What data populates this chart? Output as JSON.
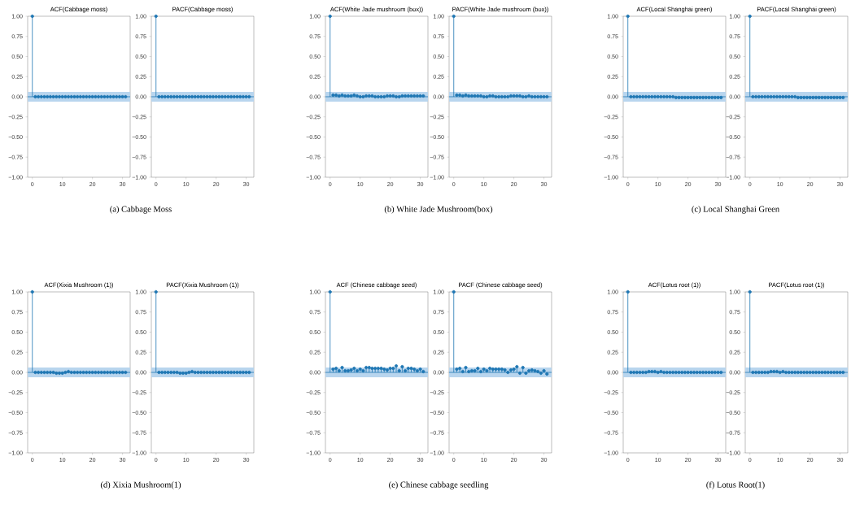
{
  "chart_data": [
    {
      "type": "lollipop",
      "title": "ACF(Cabbage moss)",
      "color": "#1f77b4",
      "marker": "circle",
      "x": [
        0,
        1,
        2,
        3,
        4,
        5,
        6,
        7,
        8,
        9,
        10,
        11,
        12,
        13,
        14,
        15,
        16,
        17,
        18,
        19,
        20,
        21,
        22,
        23,
        24,
        25,
        26,
        27,
        28,
        29,
        30,
        31
      ],
      "values": [
        1,
        0,
        0,
        0,
        0,
        0,
        0,
        0,
        0,
        0,
        0,
        0,
        0,
        0,
        0,
        0,
        0,
        0,
        0,
        0,
        0,
        0,
        0,
        0,
        0,
        0,
        0,
        0,
        0,
        0,
        0,
        0
      ],
      "xlim": [
        -1.55,
        32.55
      ],
      "ylim": [
        -1,
        1
      ],
      "xticks": [
        0,
        10,
        20,
        30
      ],
      "yticks": [
        {
          "value": -1,
          "label": "−1.00"
        },
        {
          "value": -0.75,
          "label": "−0.75"
        },
        {
          "value": -0.5,
          "label": "−0.50"
        },
        {
          "value": -0.25,
          "label": "−0.25"
        },
        {
          "value": 0,
          "label": "0.00"
        },
        {
          "value": 0.25,
          "label": "0.25"
        },
        {
          "value": 0.5,
          "label": "0.50"
        },
        {
          "value": 0.75,
          "label": "0.75"
        },
        {
          "value": 1,
          "label": "1.00"
        }
      ],
      "bands": [
        {
          "axis": "y",
          "from": -0.06,
          "to": 0.06,
          "color": "#b8d5ee"
        }
      ],
      "ref_lines": [
        {
          "axis": "y",
          "value": 0,
          "color": "#1f77b4"
        }
      ],
      "annotations": [
        "(a)  Cabbage Moss"
      ]
    },
    {
      "type": "lollipop",
      "title": "PACF(Cabbage moss)",
      "color": "#1f77b4",
      "marker": "circle",
      "x": [
        0,
        1,
        2,
        3,
        4,
        5,
        6,
        7,
        8,
        9,
        10,
        11,
        12,
        13,
        14,
        15,
        16,
        17,
        18,
        19,
        20,
        21,
        22,
        23,
        24,
        25,
        26,
        27,
        28,
        29,
        30,
        31
      ],
      "values": [
        1,
        0,
        0,
        0,
        0,
        0,
        0,
        0,
        0,
        0,
        0,
        0,
        0,
        0,
        0,
        0,
        0,
        0,
        0,
        0,
        0,
        0,
        0,
        0,
        0,
        0,
        0,
        0,
        0,
        0,
        0,
        0
      ],
      "xlim": [
        -1.55,
        32.55
      ],
      "ylim": [
        -1,
        1
      ],
      "xticks": [
        0,
        10,
        20,
        30
      ],
      "yticks": [
        {
          "value": -1,
          "label": "−1.00"
        },
        {
          "value": -0.75,
          "label": "−0.75"
        },
        {
          "value": -0.5,
          "label": "−0.50"
        },
        {
          "value": -0.25,
          "label": "−0.25"
        },
        {
          "value": 0,
          "label": "0.00"
        },
        {
          "value": 0.25,
          "label": "0.25"
        },
        {
          "value": 0.5,
          "label": "0.50"
        },
        {
          "value": 0.75,
          "label": "0.75"
        },
        {
          "value": 1,
          "label": "1.00"
        }
      ],
      "bands": [
        {
          "axis": "y",
          "from": -0.06,
          "to": 0.06,
          "color": "#b8d5ee"
        }
      ],
      "ref_lines": [
        {
          "axis": "y",
          "value": 0,
          "color": "#1f77b4"
        }
      ]
    },
    {
      "type": "lollipop",
      "title": "ACF(White Jade mushroom (box))",
      "color": "#1f77b4",
      "marker": "circle",
      "x": [
        0,
        1,
        2,
        3,
        4,
        5,
        6,
        7,
        8,
        9,
        10,
        11,
        12,
        13,
        14,
        15,
        16,
        17,
        18,
        19,
        20,
        21,
        22,
        23,
        24,
        25,
        26,
        27,
        28,
        29,
        30,
        31
      ],
      "values": [
        1,
        0.02,
        0.02,
        0.01,
        0.02,
        0.01,
        0.01,
        0.01,
        0.02,
        0.01,
        0,
        0,
        0.01,
        0.01,
        0.01,
        0,
        0,
        0,
        0,
        0.01,
        0.01,
        0.01,
        0,
        0,
        0.01,
        0.01,
        0.01,
        0.01,
        0.01,
        0.01,
        0.01,
        0.01
      ],
      "xlim": [
        -1.55,
        32.55
      ],
      "ylim": [
        -1,
        1
      ],
      "xticks": [
        0,
        10,
        20,
        30
      ],
      "yticks": [
        {
          "value": -1,
          "label": "−1.00"
        },
        {
          "value": -0.75,
          "label": "−0.75"
        },
        {
          "value": -0.5,
          "label": "−0.50"
        },
        {
          "value": -0.25,
          "label": "−0.25"
        },
        {
          "value": 0,
          "label": "0.00"
        },
        {
          "value": 0.25,
          "label": "0.25"
        },
        {
          "value": 0.5,
          "label": "0.50"
        },
        {
          "value": 0.75,
          "label": "0.75"
        },
        {
          "value": 1,
          "label": "1.00"
        }
      ],
      "bands": [
        {
          "axis": "y",
          "from": -0.06,
          "to": 0.06,
          "color": "#b8d5ee"
        }
      ],
      "ref_lines": [
        {
          "axis": "y",
          "value": 0,
          "color": "#1f77b4"
        }
      ],
      "annotations": [
        "(b)  White Jade Mushroom(box)"
      ]
    },
    {
      "type": "lollipop",
      "title": "PACF(White Jade mushroom (box))",
      "color": "#1f77b4",
      "marker": "circle",
      "x": [
        0,
        1,
        2,
        3,
        4,
        5,
        6,
        7,
        8,
        9,
        10,
        11,
        12,
        13,
        14,
        15,
        16,
        17,
        18,
        19,
        20,
        21,
        22,
        23,
        24,
        25,
        26,
        27,
        28,
        29,
        30,
        31
      ],
      "values": [
        1,
        0.02,
        0.02,
        0.01,
        0.02,
        0.01,
        0.01,
        0.01,
        0.01,
        0.01,
        0,
        0,
        0.01,
        0.01,
        0,
        0,
        0,
        0,
        0,
        0.01,
        0.01,
        0.01,
        0.01,
        0,
        0,
        0.01,
        0,
        0,
        0,
        0,
        0,
        0
      ],
      "xlim": [
        -1.55,
        32.55
      ],
      "ylim": [
        -1,
        1
      ],
      "xticks": [
        0,
        10,
        20,
        30
      ],
      "yticks": [
        {
          "value": -1,
          "label": "−1.00"
        },
        {
          "value": -0.75,
          "label": "−0.75"
        },
        {
          "value": -0.5,
          "label": "−0.50"
        },
        {
          "value": -0.25,
          "label": "−0.25"
        },
        {
          "value": 0,
          "label": "0.00"
        },
        {
          "value": 0.25,
          "label": "0.25"
        },
        {
          "value": 0.5,
          "label": "0.50"
        },
        {
          "value": 0.75,
          "label": "0.75"
        },
        {
          "value": 1,
          "label": "1.00"
        }
      ],
      "bands": [
        {
          "axis": "y",
          "from": -0.06,
          "to": 0.06,
          "color": "#b8d5ee"
        }
      ],
      "ref_lines": [
        {
          "axis": "y",
          "value": 0,
          "color": "#1f77b4"
        }
      ]
    },
    {
      "type": "lollipop",
      "title": "ACF(Local Shanghai green)",
      "color": "#1f77b4",
      "marker": "circle",
      "x": [
        0,
        1,
        2,
        3,
        4,
        5,
        6,
        7,
        8,
        9,
        10,
        11,
        12,
        13,
        14,
        15,
        16,
        17,
        18,
        19,
        20,
        21,
        22,
        23,
        24,
        25,
        26,
        27,
        28,
        29,
        30,
        31
      ],
      "values": [
        1,
        0,
        0,
        0,
        0,
        0,
        0,
        0,
        0,
        0,
        0,
        0,
        0,
        0,
        0,
        0,
        -0.01,
        -0.01,
        -0.01,
        -0.01,
        -0.01,
        -0.01,
        -0.01,
        -0.01,
        -0.01,
        -0.01,
        -0.01,
        -0.01,
        -0.01,
        -0.01,
        -0.01,
        -0.01
      ],
      "xlim": [
        -1.55,
        32.55
      ],
      "ylim": [
        -1,
        1
      ],
      "xticks": [
        0,
        10,
        20,
        30
      ],
      "yticks": [
        {
          "value": -1,
          "label": "−1.00"
        },
        {
          "value": -0.75,
          "label": "−0.75"
        },
        {
          "value": -0.5,
          "label": "−0.50"
        },
        {
          "value": -0.25,
          "label": "−0.25"
        },
        {
          "value": 0,
          "label": "0.00"
        },
        {
          "value": 0.25,
          "label": "0.25"
        },
        {
          "value": 0.5,
          "label": "0.50"
        },
        {
          "value": 0.75,
          "label": "0.75"
        },
        {
          "value": 1,
          "label": "1.00"
        }
      ],
      "bands": [
        {
          "axis": "y",
          "from": -0.06,
          "to": 0.06,
          "color": "#b8d5ee"
        }
      ],
      "ref_lines": [
        {
          "axis": "y",
          "value": 0,
          "color": "#1f77b4"
        }
      ],
      "annotations": [
        "(c)  Local Shanghai Green"
      ]
    },
    {
      "type": "lollipop",
      "title": "PACF(Local Shanghai green)",
      "color": "#1f77b4",
      "marker": "circle",
      "x": [
        0,
        1,
        2,
        3,
        4,
        5,
        6,
        7,
        8,
        9,
        10,
        11,
        12,
        13,
        14,
        15,
        16,
        17,
        18,
        19,
        20,
        21,
        22,
        23,
        24,
        25,
        26,
        27,
        28,
        29,
        30,
        31
      ],
      "values": [
        1,
        0,
        0,
        0,
        0,
        0,
        0,
        0,
        0,
        0,
        0,
        0,
        0,
        0,
        0,
        0,
        -0.01,
        -0.01,
        -0.01,
        -0.01,
        -0.01,
        -0.01,
        -0.01,
        -0.01,
        -0.01,
        -0.01,
        -0.01,
        -0.01,
        -0.01,
        -0.01,
        -0.01,
        -0.01
      ],
      "xlim": [
        -1.55,
        32.55
      ],
      "ylim": [
        -1,
        1
      ],
      "xticks": [
        0,
        10,
        20,
        30
      ],
      "yticks": [
        {
          "value": -1,
          "label": "−1.00"
        },
        {
          "value": -0.75,
          "label": "−0.75"
        },
        {
          "value": -0.5,
          "label": "−0.50"
        },
        {
          "value": -0.25,
          "label": "−0.25"
        },
        {
          "value": 0,
          "label": "0.00"
        },
        {
          "value": 0.25,
          "label": "0.25"
        },
        {
          "value": 0.5,
          "label": "0.50"
        },
        {
          "value": 0.75,
          "label": "0.75"
        },
        {
          "value": 1,
          "label": "1.00"
        }
      ],
      "bands": [
        {
          "axis": "y",
          "from": -0.06,
          "to": 0.06,
          "color": "#b8d5ee"
        }
      ],
      "ref_lines": [
        {
          "axis": "y",
          "value": 0,
          "color": "#1f77b4"
        }
      ]
    },
    {
      "type": "lollipop",
      "title": "ACF(Xixia Mushroom (1))",
      "color": "#1f77b4",
      "marker": "circle",
      "x": [
        0,
        1,
        2,
        3,
        4,
        5,
        6,
        7,
        8,
        9,
        10,
        11,
        12,
        13,
        14,
        15,
        16,
        17,
        18,
        19,
        20,
        21,
        22,
        23,
        24,
        25,
        26,
        27,
        28,
        29,
        30,
        31
      ],
      "values": [
        1,
        0,
        0,
        0,
        0,
        0,
        0,
        0,
        -0.01,
        -0.01,
        -0.01,
        0,
        0.01,
        0,
        0,
        0,
        0,
        0,
        0,
        0,
        0,
        0,
        0,
        0,
        0,
        0,
        0,
        0,
        0,
        0,
        0,
        0
      ],
      "xlim": [
        -1.55,
        32.55
      ],
      "ylim": [
        -1,
        1
      ],
      "xticks": [
        0,
        10,
        20,
        30
      ],
      "yticks": [
        {
          "value": -1,
          "label": "−1.00"
        },
        {
          "value": -0.75,
          "label": "−0.75"
        },
        {
          "value": -0.5,
          "label": "−0.50"
        },
        {
          "value": -0.25,
          "label": "−0.25"
        },
        {
          "value": 0,
          "label": "0.00"
        },
        {
          "value": 0.25,
          "label": "0.25"
        },
        {
          "value": 0.5,
          "label": "0.50"
        },
        {
          "value": 0.75,
          "label": "0.75"
        },
        {
          "value": 1,
          "label": "1.00"
        }
      ],
      "bands": [
        {
          "axis": "y",
          "from": -0.06,
          "to": 0.06,
          "color": "#b8d5ee"
        }
      ],
      "ref_lines": [
        {
          "axis": "y",
          "value": 0,
          "color": "#1f77b4"
        }
      ],
      "annotations": [
        "(d)  Xixia Mushroom(1)"
      ]
    },
    {
      "type": "lollipop",
      "title": "PACF(Xixia Mushroom (1))",
      "color": "#1f77b4",
      "marker": "circle",
      "x": [
        0,
        1,
        2,
        3,
        4,
        5,
        6,
        7,
        8,
        9,
        10,
        11,
        12,
        13,
        14,
        15,
        16,
        17,
        18,
        19,
        20,
        21,
        22,
        23,
        24,
        25,
        26,
        27,
        28,
        29,
        30,
        31
      ],
      "values": [
        1,
        0,
        0,
        0,
        0,
        0,
        0,
        0,
        -0.01,
        -0.01,
        -0.01,
        0,
        0.01,
        0,
        0,
        0,
        0,
        0,
        0,
        0,
        0,
        0,
        0,
        0,
        0,
        0,
        0,
        0,
        0,
        0,
        0,
        0
      ],
      "xlim": [
        -1.55,
        32.55
      ],
      "ylim": [
        -1,
        1
      ],
      "xticks": [
        0,
        10,
        20,
        30
      ],
      "yticks": [
        {
          "value": -1,
          "label": "−1.00"
        },
        {
          "value": -0.75,
          "label": "−0.75"
        },
        {
          "value": -0.5,
          "label": "−0.50"
        },
        {
          "value": -0.25,
          "label": "−0.25"
        },
        {
          "value": 0,
          "label": "0.00"
        },
        {
          "value": 0.25,
          "label": "0.25"
        },
        {
          "value": 0.5,
          "label": "0.50"
        },
        {
          "value": 0.75,
          "label": "0.75"
        },
        {
          "value": 1,
          "label": "1.00"
        }
      ],
      "bands": [
        {
          "axis": "y",
          "from": -0.06,
          "to": 0.06,
          "color": "#b8d5ee"
        }
      ],
      "ref_lines": [
        {
          "axis": "y",
          "value": 0,
          "color": "#1f77b4"
        }
      ]
    },
    {
      "type": "lollipop",
      "title": "ACF  (Chinese cabbage seed)",
      "color": "#1f77b4",
      "marker": "circle",
      "x": [
        0,
        1,
        2,
        3,
        4,
        5,
        6,
        7,
        8,
        9,
        10,
        11,
        12,
        13,
        14,
        15,
        16,
        17,
        18,
        19,
        20,
        21,
        22,
        23,
        24,
        25,
        26,
        27,
        28,
        29,
        30,
        31
      ],
      "values": [
        1,
        0.04,
        0.05,
        0.02,
        0.06,
        0.02,
        0.02,
        0.03,
        0.05,
        0.02,
        0.04,
        0.02,
        0.06,
        0.06,
        0.05,
        0.05,
        0.05,
        0.05,
        0.04,
        0.03,
        0.05,
        0.05,
        0.08,
        0.02,
        0.07,
        0.02,
        0.05,
        0.05,
        0.04,
        0.02,
        0.04,
        0.01
      ],
      "xlim": [
        -1.55,
        32.55
      ],
      "ylim": [
        -1,
        1
      ],
      "xticks": [
        0,
        10,
        20,
        30
      ],
      "yticks": [
        {
          "value": -1,
          "label": "−1.00"
        },
        {
          "value": -0.75,
          "label": "−0.75"
        },
        {
          "value": -0.5,
          "label": "−0.50"
        },
        {
          "value": -0.25,
          "label": "−0.25"
        },
        {
          "value": 0,
          "label": "0.00"
        },
        {
          "value": 0.25,
          "label": "0.25"
        },
        {
          "value": 0.5,
          "label": "0.50"
        },
        {
          "value": 0.75,
          "label": "0.75"
        },
        {
          "value": 1,
          "label": "1.00"
        }
      ],
      "bands": [
        {
          "axis": "y",
          "from": -0.06,
          "to": 0.06,
          "color": "#b8d5ee"
        }
      ],
      "ref_lines": [
        {
          "axis": "y",
          "value": 0,
          "color": "#1f77b4"
        }
      ],
      "annotations": [
        "(e)  Chinese cabbage seedling"
      ]
    },
    {
      "type": "lollipop",
      "title": "PACF  (Chinese cabbage seed)",
      "color": "#1f77b4",
      "marker": "circle",
      "x": [
        0,
        1,
        2,
        3,
        4,
        5,
        6,
        7,
        8,
        9,
        10,
        11,
        12,
        13,
        14,
        15,
        16,
        17,
        18,
        19,
        20,
        21,
        22,
        23,
        24,
        25,
        26,
        27,
        28,
        29,
        30,
        31
      ],
      "values": [
        1,
        0.04,
        0.05,
        0.01,
        0.06,
        0.01,
        0.02,
        0.02,
        0.05,
        0.01,
        0.04,
        0.02,
        0.05,
        0.04,
        0.04,
        0.04,
        0.04,
        0.03,
        0,
        0.03,
        0.04,
        0.07,
        -0.01,
        0.06,
        -0.01,
        0.02,
        0.03,
        0.02,
        0.01,
        -0.01,
        0.02,
        -0.02
      ],
      "xlim": [
        -1.55,
        32.55
      ],
      "ylim": [
        -1,
        1
      ],
      "xticks": [
        0,
        10,
        20,
        30
      ],
      "yticks": [
        {
          "value": -1,
          "label": "−1.00"
        },
        {
          "value": -0.75,
          "label": "−0.75"
        },
        {
          "value": -0.5,
          "label": "−0.50"
        },
        {
          "value": -0.25,
          "label": "−0.25"
        },
        {
          "value": 0,
          "label": "0.00"
        },
        {
          "value": 0.25,
          "label": "0.25"
        },
        {
          "value": 0.5,
          "label": "0.50"
        },
        {
          "value": 0.75,
          "label": "0.75"
        },
        {
          "value": 1,
          "label": "1.00"
        }
      ],
      "bands": [
        {
          "axis": "y",
          "from": -0.06,
          "to": 0.06,
          "color": "#b8d5ee"
        }
      ],
      "ref_lines": [
        {
          "axis": "y",
          "value": 0,
          "color": "#1f77b4"
        }
      ]
    },
    {
      "type": "lollipop",
      "title": "ACF(Lotus root (1))",
      "color": "#1f77b4",
      "marker": "circle",
      "x": [
        0,
        1,
        2,
        3,
        4,
        5,
        6,
        7,
        8,
        9,
        10,
        11,
        12,
        13,
        14,
        15,
        16,
        17,
        18,
        19,
        20,
        21,
        22,
        23,
        24,
        25,
        26,
        27,
        28,
        29,
        30,
        31
      ],
      "values": [
        1,
        0,
        0,
        0,
        0,
        0,
        0,
        0.01,
        0.01,
        0.01,
        0,
        0.01,
        0,
        0,
        0,
        0,
        0,
        0,
        0,
        0,
        0,
        0,
        0,
        0,
        0,
        0,
        0,
        0,
        0,
        0,
        0,
        0
      ],
      "xlim": [
        -1.55,
        32.55
      ],
      "ylim": [
        -1,
        1
      ],
      "xticks": [
        0,
        10,
        20,
        30
      ],
      "yticks": [
        {
          "value": -1,
          "label": "−1.00"
        },
        {
          "value": -0.75,
          "label": "−0.75"
        },
        {
          "value": -0.5,
          "label": "−0.50"
        },
        {
          "value": -0.25,
          "label": "−0.25"
        },
        {
          "value": 0,
          "label": "0.00"
        },
        {
          "value": 0.25,
          "label": "0.25"
        },
        {
          "value": 0.5,
          "label": "0.50"
        },
        {
          "value": 0.75,
          "label": "0.75"
        },
        {
          "value": 1,
          "label": "1.00"
        }
      ],
      "bands": [
        {
          "axis": "y",
          "from": -0.06,
          "to": 0.06,
          "color": "#b8d5ee"
        }
      ],
      "ref_lines": [
        {
          "axis": "y",
          "value": 0,
          "color": "#1f77b4"
        }
      ],
      "annotations": [
        "(f)  Lotus Root(1)"
      ]
    },
    {
      "type": "lollipop",
      "title": "PACF(Lotus root (1))",
      "color": "#1f77b4",
      "marker": "circle",
      "x": [
        0,
        1,
        2,
        3,
        4,
        5,
        6,
        7,
        8,
        9,
        10,
        11,
        12,
        13,
        14,
        15,
        16,
        17,
        18,
        19,
        20,
        21,
        22,
        23,
        24,
        25,
        26,
        27,
        28,
        29,
        30,
        31
      ],
      "values": [
        1,
        0,
        0,
        0,
        0,
        0,
        0,
        0.01,
        0.01,
        0.01,
        0,
        0.01,
        0,
        0,
        0,
        0,
        0,
        0,
        0,
        0,
        0,
        0,
        0,
        0,
        0,
        0,
        0,
        0,
        0,
        0,
        0,
        0
      ],
      "xlim": [
        -1.55,
        32.55
      ],
      "ylim": [
        -1,
        1
      ],
      "xticks": [
        0,
        10,
        20,
        30
      ],
      "yticks": [
        {
          "value": -1,
          "label": "−1.00"
        },
        {
          "value": -0.75,
          "label": "−0.75"
        },
        {
          "value": -0.5,
          "label": "−0.50"
        },
        {
          "value": -0.25,
          "label": "−0.25"
        },
        {
          "value": 0,
          "label": "0.00"
        },
        {
          "value": 0.25,
          "label": "0.25"
        },
        {
          "value": 0.5,
          "label": "0.50"
        },
        {
          "value": 0.75,
          "label": "0.75"
        },
        {
          "value": 1,
          "label": "1.00"
        }
      ],
      "bands": [
        {
          "axis": "y",
          "from": -0.06,
          "to": 0.06,
          "color": "#b8d5ee"
        }
      ],
      "ref_lines": [
        {
          "axis": "y",
          "value": 0,
          "color": "#1f77b4"
        }
      ]
    }
  ]
}
